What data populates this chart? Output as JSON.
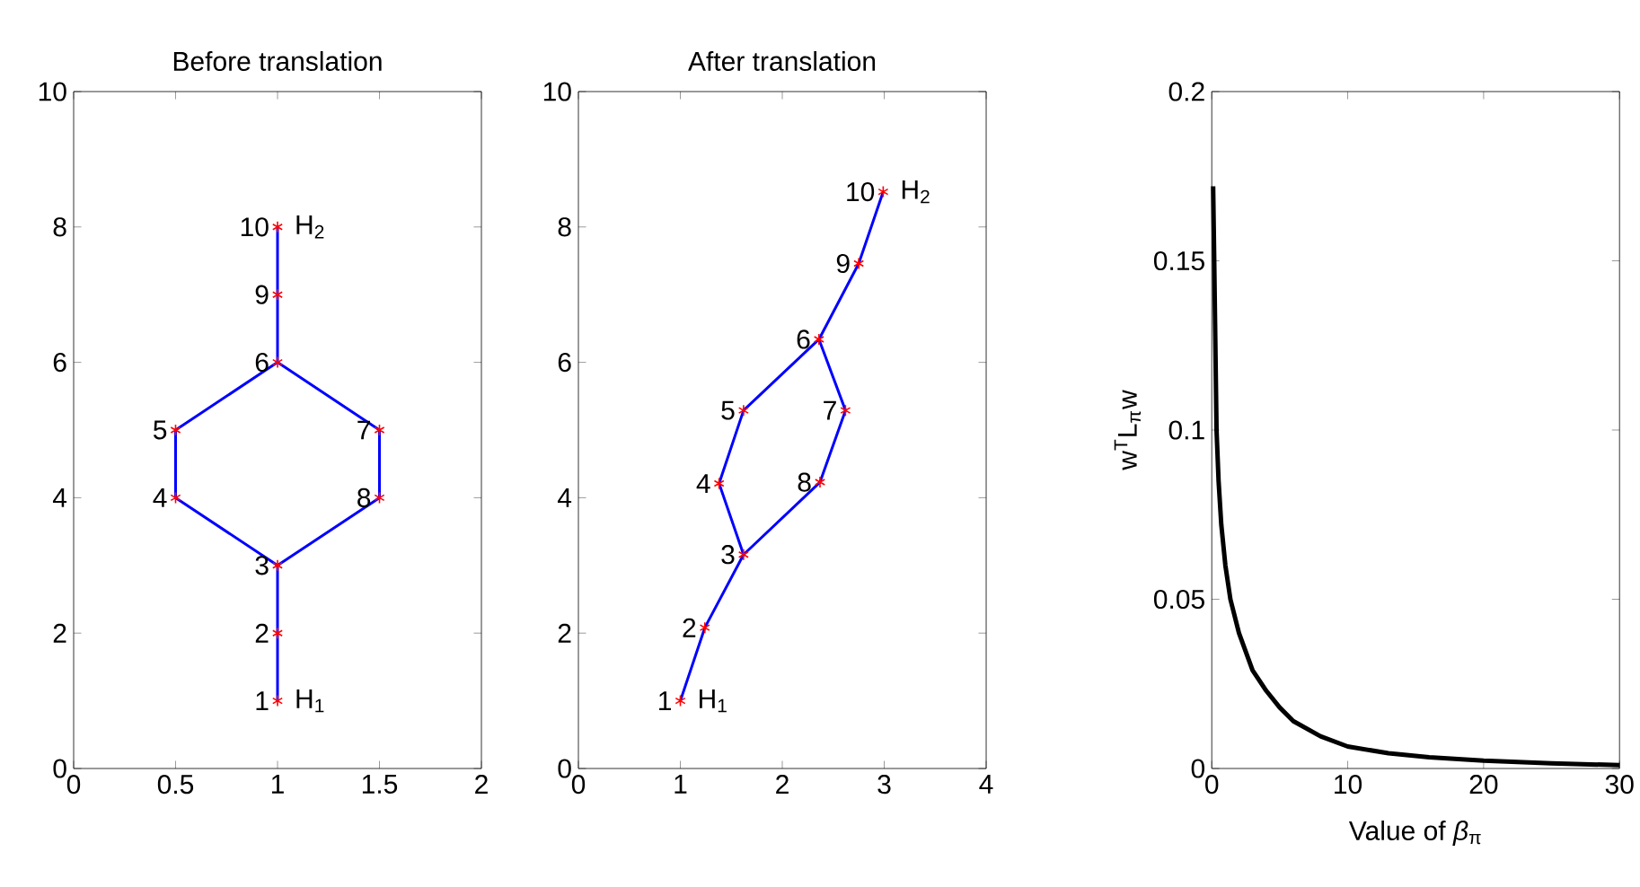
{
  "chart_data": [
    {
      "type": "line",
      "title": "Before translation",
      "xlim": [
        0,
        2
      ],
      "ylim": [
        0,
        10
      ],
      "xticks": [
        0,
        0.5,
        1,
        1.5,
        2
      ],
      "yticks": [
        0,
        2,
        4,
        6,
        8,
        10
      ],
      "series": [
        {
          "color": "#0000ff",
          "x": [
            1,
            1,
            1,
            0.5,
            0.5,
            1,
            1,
            1
          ],
          "values": [
            1,
            2,
            3,
            4,
            5,
            6,
            7,
            8
          ]
        },
        {
          "color": "#0000ff",
          "x": [
            1,
            1.5,
            1.5,
            1
          ],
          "values": [
            3,
            4,
            5,
            6
          ]
        },
        {
          "type": "scatter",
          "marker": "cross",
          "color": "#ff0000",
          "x": [
            1,
            1,
            1,
            0.5,
            0.5,
            1,
            1.5,
            1.5,
            1,
            1
          ],
          "values": [
            1,
            2,
            3,
            4,
            5,
            6,
            5,
            4,
            7,
            8
          ]
        }
      ],
      "annotations": [
        {
          "text": "1",
          "x": 1,
          "y": 1
        },
        {
          "text": "2",
          "x": 1,
          "y": 2
        },
        {
          "text": "3",
          "x": 1,
          "y": 3
        },
        {
          "text": "4",
          "x": 0.5,
          "y": 4
        },
        {
          "text": "5",
          "x": 0.5,
          "y": 5
        },
        {
          "text": "6",
          "x": 1,
          "y": 6
        },
        {
          "text": "7",
          "x": 1.5,
          "y": 5
        },
        {
          "text": "8",
          "x": 1.5,
          "y": 4
        },
        {
          "text": "9",
          "x": 1,
          "y": 7
        },
        {
          "text": "10",
          "x": 1,
          "y": 8
        },
        {
          "text": "H$_{1}$",
          "x": 1,
          "y": 1
        },
        {
          "text": "H$_{2}$",
          "x": 1,
          "y": 8
        }
      ]
    },
    {
      "type": "line",
      "title": "After translation",
      "xlim": [
        0,
        4
      ],
      "ylim": [
        0,
        10
      ],
      "xticks": [
        0,
        1,
        2,
        3,
        4
      ],
      "yticks": [
        0,
        2,
        4,
        6,
        8,
        10
      ],
      "series": [
        {
          "color": "#0000ff",
          "x": [
            1.0,
            1.24,
            1.62,
            1.38,
            1.62,
            2.36,
            2.75,
            2.99
          ],
          "values": [
            1.0,
            2.08,
            3.16,
            4.21,
            5.29,
            6.34,
            7.46,
            8.52
          ]
        },
        {
          "color": "#0000ff",
          "x": [
            1.62,
            2.37,
            2.62,
            2.36
          ],
          "values": [
            3.16,
            4.23,
            5.29,
            6.34
          ]
        },
        {
          "type": "scatter",
          "marker": "cross",
          "color": "#ff0000",
          "x": [
            1.0,
            1.24,
            1.62,
            1.38,
            1.62,
            2.36,
            2.62,
            2.37,
            2.75,
            2.99
          ],
          "values": [
            1.0,
            2.08,
            3.16,
            4.21,
            5.29,
            6.34,
            5.29,
            4.23,
            7.46,
            8.52
          ]
        }
      ],
      "annotations": [
        {
          "text": "1",
          "x": 1.0,
          "y": 1.0
        },
        {
          "text": "2",
          "x": 1.24,
          "y": 2.08
        },
        {
          "text": "3",
          "x": 1.62,
          "y": 3.16
        },
        {
          "text": "4",
          "x": 1.38,
          "y": 4.21
        },
        {
          "text": "5",
          "x": 1.62,
          "y": 5.29
        },
        {
          "text": "6",
          "x": 2.36,
          "y": 6.34
        },
        {
          "text": "7",
          "x": 2.62,
          "y": 5.29
        },
        {
          "text": "8",
          "x": 2.37,
          "y": 4.23
        },
        {
          "text": "9",
          "x": 2.75,
          "y": 7.46
        },
        {
          "text": "10",
          "x": 2.99,
          "y": 8.52
        },
        {
          "text": "H$_{1}$",
          "x": 1.0,
          "y": 1.0
        },
        {
          "text": "H$_{2}$",
          "x": 2.99,
          "y": 8.52
        }
      ]
    },
    {
      "type": "line",
      "xlabel": "Value of *β*$_{π}$",
      "ylabel": "w$^{T}$L$_{π}$w",
      "xlim": [
        0,
        30
      ],
      "ylim": [
        0,
        0.2
      ],
      "xticks": [
        0,
        10,
        20,
        30
      ],
      "yticks": [
        0,
        0.05,
        0.1,
        0.15,
        0.2
      ],
      "series": [
        {
          "color": "#000000",
          "x": [
            0.1,
            0.18,
            0.35,
            0.5,
            0.7,
            1,
            1.37,
            2,
            3,
            4,
            5,
            6,
            8,
            10,
            13,
            16,
            20,
            25,
            30
          ],
          "values": [
            0.172,
            0.15,
            0.1,
            0.085,
            0.072,
            0.06,
            0.05,
            0.04,
            0.029,
            0.023,
            0.018,
            0.014,
            0.0095,
            0.0065,
            0.0045,
            0.0033,
            0.0023,
            0.0015,
            0.001
          ]
        }
      ]
    }
  ]
}
